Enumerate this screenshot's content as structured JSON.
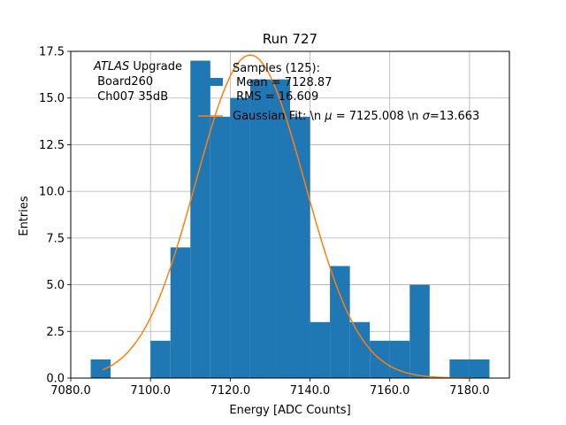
{
  "chart_data": {
    "type": "bar",
    "title": "Run 727",
    "xlabel": "Energy [ADC Counts]",
    "ylabel": "Entries",
    "xlim": [
      7080.0,
      7190.0
    ],
    "ylim": [
      0.0,
      17.5
    ],
    "grid": true,
    "x_ticks": [
      7080.0,
      7100.0,
      7120.0,
      7140.0,
      7160.0,
      7180.0
    ],
    "x_tick_labels": [
      "7080.0",
      "7100.0",
      "7120.0",
      "7140.0",
      "7160.0",
      "7180.0"
    ],
    "y_ticks": [
      0.0,
      2.5,
      5.0,
      7.5,
      10.0,
      12.5,
      15.0,
      17.5
    ],
    "y_tick_labels": [
      "0.0",
      "2.5",
      "5.0",
      "7.5",
      "10.0",
      "12.5",
      "15.0",
      "17.5"
    ],
    "histogram": {
      "name": "Samples (125):\n Mean = 7128.87\n RMS = 16.609",
      "color": "#1f77b4",
      "bin_edges": [
        7085,
        7090,
        7095,
        7100,
        7105,
        7110,
        7115,
        7120,
        7125,
        7130,
        7135,
        7140,
        7145,
        7150,
        7155,
        7160,
        7165,
        7170,
        7175,
        7180,
        7185
      ],
      "counts": [
        1,
        0,
        0,
        2,
        7,
        17,
        14,
        15,
        16,
        16,
        14,
        3,
        6,
        3,
        2,
        2,
        5,
        0,
        1,
        1
      ]
    },
    "fit": {
      "name": "Gaussian Fit: \\n $\\mu$ = 7125.008 \\n $\\sigma$=13.663",
      "color": "#ff7f0e",
      "mu": 7125.008,
      "sigma": 13.663,
      "amplitude": 17.3,
      "x_range": [
        7088,
        7181
      ]
    },
    "legend_position": "upper right",
    "annotation": {
      "lines": [
        "ATLAS Upgrade",
        " Board260",
        " Ch007 35dB"
      ],
      "italic_word": "ATLAS",
      "position": "upper left"
    },
    "legend_labels": {
      "samples_lines": [
        "Samples (125):",
        " Mean = 7128.87",
        " RMS = 16.609"
      ],
      "fit_parts": [
        "Gaussian Fit: \\n ",
        "μ",
        " = 7125.008 \\n ",
        "σ",
        "=13.663"
      ]
    }
  }
}
